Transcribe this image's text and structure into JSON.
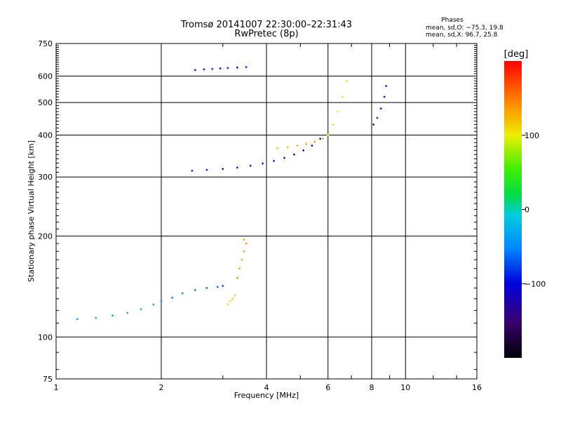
{
  "header": {
    "title_line1": "Tromsø 20141007 22:30:00–22:31:43",
    "title_line2": "RwPretec (8p)"
  },
  "phases": {
    "heading": "Phases",
    "line_o": "mean, sd,O: −75.3, 19.8",
    "line_x": "mean, sd,X:  96.7, 25.8"
  },
  "colorbar": {
    "label": "[deg]",
    "ticks": [
      "100",
      "0",
      "−100"
    ],
    "tick_values": [
      100,
      0,
      -100
    ],
    "range": [
      -200,
      200
    ]
  },
  "chart_data": {
    "type": "scatter",
    "xlabel": "Frequency [MHz]",
    "ylabel": "Stationary phase Virtual Height [km]",
    "x_scale": "log",
    "y_scale": "log",
    "xlim": [
      1,
      16
    ],
    "ylim": [
      75,
      750
    ],
    "x_ticks": [
      1,
      2,
      4,
      6,
      8,
      10,
      16
    ],
    "x_tick_labels": [
      "1",
      "2",
      "4",
      "6",
      "8",
      "10",
      "16"
    ],
    "y_ticks": [
      75,
      100,
      200,
      300,
      400,
      500,
      600,
      750
    ],
    "y_tick_labels": [
      "75",
      "100",
      "200",
      "300",
      "400",
      "500",
      "600",
      "750"
    ],
    "grid": true,
    "traces": [
      {
        "freq": [
          1.15,
          1.3,
          1.45,
          1.6,
          1.75,
          1.9,
          2.0,
          2.15,
          2.3,
          2.5,
          2.7,
          2.9,
          3.0
        ],
        "height": [
          113,
          114,
          116,
          118,
          121,
          125,
          128,
          131,
          135,
          138,
          140,
          141,
          142
        ],
        "phase": [
          -45,
          -40,
          -35,
          -40,
          -45,
          -50,
          -55,
          -60,
          -60,
          -65,
          -70,
          -75,
          -80
        ]
      },
      {
        "freq": [
          2.45,
          2.7,
          3.0,
          3.3,
          3.6,
          3.9,
          4.2,
          4.5,
          4.8,
          5.1,
          5.4,
          5.7
        ],
        "height": [
          313,
          315,
          317,
          320,
          324,
          329,
          335,
          342,
          350,
          360,
          372,
          390
        ],
        "phase": [
          -95,
          -95,
          -100,
          -100,
          -100,
          -105,
          -105,
          -110,
          -110,
          -115,
          -110,
          -105
        ]
      },
      {
        "freq": [
          4.3,
          4.6,
          4.9,
          5.2,
          5.5,
          5.8,
          6.0
        ],
        "height": [
          365,
          368,
          372,
          376,
          382,
          390,
          400
        ],
        "phase": [
          120,
          125,
          130,
          135,
          140,
          130,
          110
        ]
      },
      {
        "freq": [
          2.5,
          2.65,
          2.8,
          2.95,
          3.1,
          3.3,
          3.5
        ],
        "height": [
          625,
          628,
          630,
          632,
          634,
          636,
          638
        ],
        "phase": [
          -95,
          -100,
          -95,
          -100,
          -90,
          -100,
          -95
        ]
      },
      {
        "freq": [
          6.0,
          6.2,
          6.4,
          6.6,
          6.8
        ],
        "height": [
          400,
          430,
          470,
          520,
          580
        ],
        "phase": [
          95,
          90,
          100,
          105,
          110
        ]
      },
      {
        "freq": [
          8.1,
          8.3,
          8.5,
          8.7,
          8.8
        ],
        "height": [
          430,
          450,
          480,
          520,
          560
        ],
        "phase": [
          -120,
          -115,
          -110,
          -100,
          -95
        ]
      },
      {
        "freq": [
          3.3,
          3.35,
          3.4,
          3.45,
          3.5,
          3.45
        ],
        "height": [
          150,
          160,
          170,
          180,
          190,
          195
        ],
        "phase": [
          140,
          135,
          130,
          135,
          140,
          138
        ]
      },
      {
        "freq": [
          3.1,
          3.15,
          3.2,
          3.25
        ],
        "height": [
          125,
          128,
          130,
          133
        ],
        "phase": [
          105,
          110,
          115,
          112
        ]
      }
    ]
  }
}
